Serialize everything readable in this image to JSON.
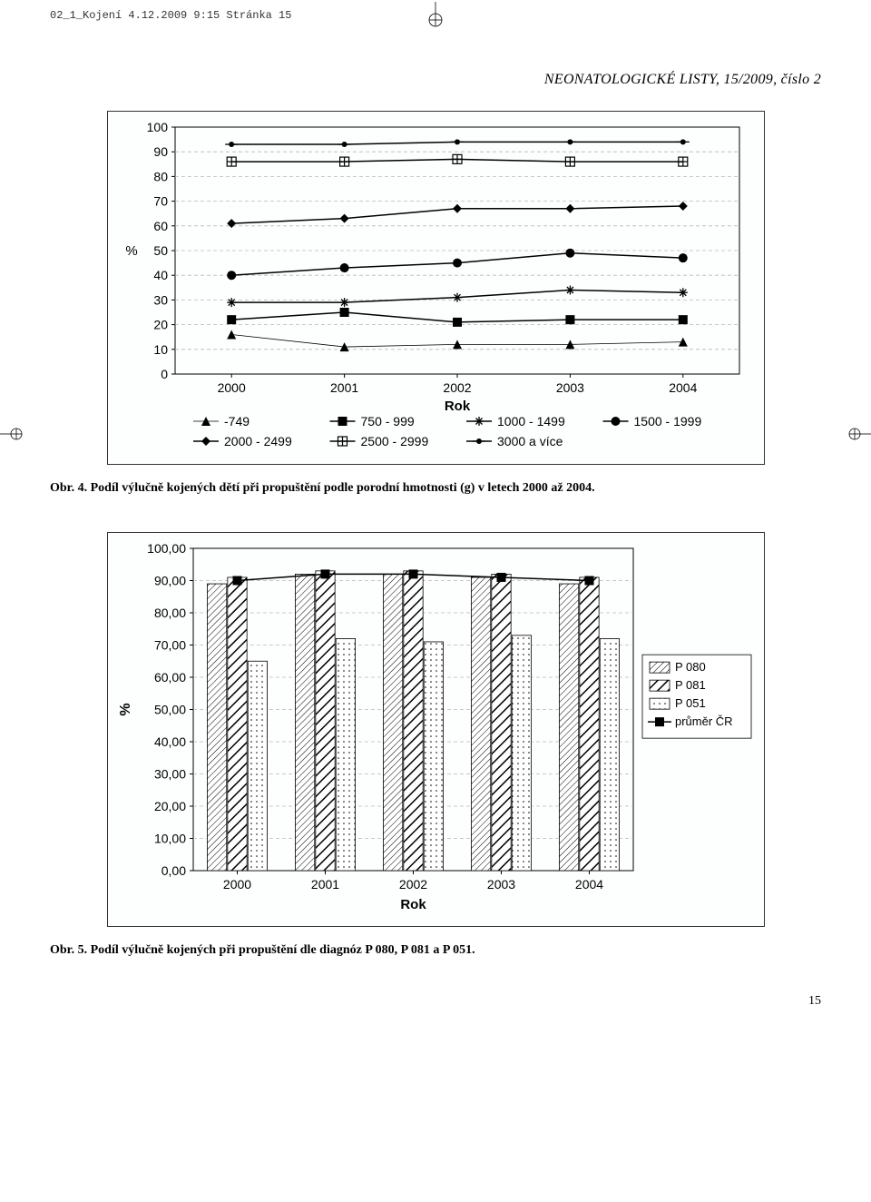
{
  "header_line": "02_1_Kojení  4.12.2009  9:15  Stránka 15",
  "journal_title": "NEONATOLOGICKÉ LISTY, 15/2009, číslo 2",
  "page_number": "15",
  "chart1": {
    "type": "line",
    "background_color": "#fdfefe",
    "plot_border": "#000000",
    "grid_color": "#b8b8b8",
    "ylabel": "%",
    "ylabel_fontsize": 15,
    "ylim": [
      0,
      100
    ],
    "ytick_step": 10,
    "yticks": [
      0,
      10,
      20,
      30,
      40,
      50,
      60,
      70,
      80,
      90,
      100
    ],
    "xlabel": "Rok",
    "xlabel_fontsize": 15,
    "tick_fontsize": 14,
    "categories": [
      "2000",
      "2001",
      "2002",
      "2003",
      "2004"
    ],
    "series": [
      {
        "name": "-749",
        "marker": "triangle",
        "color": "#000000",
        "values": [
          16,
          11,
          12,
          12,
          13
        ],
        "line_width": 0.8
      },
      {
        "name": "750 - 999",
        "marker": "square-filled",
        "color": "#000000",
        "values": [
          22,
          25,
          21,
          22,
          22
        ],
        "line_width": 1.5
      },
      {
        "name": "1000 - 1499",
        "marker": "asterisk",
        "color": "#000000",
        "values": [
          29,
          29,
          31,
          34,
          33
        ],
        "line_width": 1.5
      },
      {
        "name": "1500 - 1999",
        "marker": "circle-filled",
        "color": "#000000",
        "values": [
          40,
          43,
          45,
          49,
          47
        ],
        "line_width": 1.5
      },
      {
        "name": "2000 - 2499",
        "marker": "diamond",
        "color": "#000000",
        "values": [
          61,
          63,
          67,
          67,
          68
        ],
        "line_width": 1.5
      },
      {
        "name": "2500 - 2999",
        "marker": "plus-box",
        "color": "#000000",
        "values": [
          86,
          86,
          87,
          86,
          86
        ],
        "line_width": 1.5
      },
      {
        "name": "3000 a více",
        "marker": "dot-dash",
        "color": "#000000",
        "values": [
          93,
          93,
          94,
          94,
          94
        ],
        "line_width": 1.5
      }
    ],
    "legend_cols": 4,
    "legend_fontsize": 14
  },
  "caption1": "Obr. 4. Podíl výlučně kojených dětí při propuštění podle porodní hmotnosti (g) v letech 2000 až 2004.",
  "chart2": {
    "type": "bar+line",
    "background_color": "#fdfefe",
    "plot_border": "#000000",
    "grid_color": "#b8b8b8",
    "ylabel": "%",
    "ylabel_fontsize": 16,
    "ylim": [
      0,
      100
    ],
    "ytick_step": 10,
    "yticks": [
      "0,00",
      "10,00",
      "20,00",
      "30,00",
      "40,00",
      "50,00",
      "60,00",
      "70,00",
      "80,00",
      "90,00",
      "100,00"
    ],
    "xlabel": "Rok",
    "xlabel_fontsize": 15,
    "tick_fontsize": 14,
    "categories": [
      "2000",
      "2001",
      "2002",
      "2003",
      "2004"
    ],
    "bars": [
      {
        "name": "P 080",
        "pattern": "diag-dense",
        "color": "#000000",
        "bg": "#ffffff",
        "values": [
          89,
          92,
          92,
          91,
          89
        ]
      },
      {
        "name": "P 081",
        "pattern": "diag-bold",
        "color": "#000000",
        "bg": "#ffffff",
        "values": [
          91,
          93,
          93,
          92,
          91
        ]
      },
      {
        "name": "P 051",
        "pattern": "dots",
        "color": "#000000",
        "bg": "#ffffff",
        "values": [
          65,
          72,
          71,
          73,
          72
        ]
      }
    ],
    "line": {
      "name": "průměr ČR",
      "marker": "square-filled",
      "color": "#000000",
      "values": [
        90,
        92,
        92,
        91,
        90
      ],
      "line_width": 1.5
    },
    "bar_width": 0.22,
    "legend_fontsize": 13
  },
  "caption2": "Obr. 5. Podíl výlučně kojených při propuštění dle diagnóz P 080, P 081 a P 051."
}
